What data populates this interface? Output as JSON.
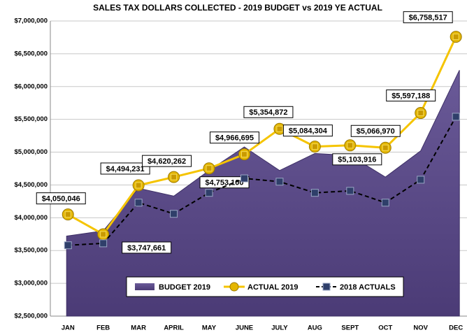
{
  "chart_data": {
    "type": "line",
    "title": "SALES TAX DOLLARS COLLECTED  - 2019 BUDGET  vs 2019 YE ACTUAL",
    "categories": [
      "JAN",
      "FEB",
      "MAR",
      "APRIL",
      "MAY",
      "JUNE",
      "JULY",
      "AUG",
      "SEPT",
      "OCT",
      "NOV",
      "DEC"
    ],
    "series": [
      {
        "name": "BUDGET 2019",
        "color": "#5b4a86",
        "style": "area",
        "values": [
          3720000,
          3800000,
          4450000,
          4330000,
          4720000,
          5080000,
          4720000,
          4980000,
          4950000,
          4620000,
          5020000,
          6250000
        ]
      },
      {
        "name": "ACTUAL 2019",
        "color": "#f5c400",
        "style": "line",
        "values": [
          4050046,
          3747661,
          4494231,
          4620262,
          4753100,
          4966695,
          5354872,
          5084304,
          5103916,
          5066970,
          5597188,
          6758517
        ],
        "value_labels": [
          "$4,050,046",
          "$3,747,661",
          "$4,494,231",
          "$4,620,262",
          "$4,753,100",
          "$4,966,695",
          "$5,354,872",
          "$5,084,304",
          "$5,103,916",
          "$5,066,970",
          "$5,597,188",
          "$6,758,517"
        ]
      },
      {
        "name": "2018 ACTUALS",
        "color": "#000000",
        "style": "dashed",
        "values": [
          3580000,
          3610000,
          4230000,
          4060000,
          4380000,
          4600000,
          4550000,
          4380000,
          4410000,
          4230000,
          4580000,
          5540000
        ]
      }
    ],
    "ylim": [
      2500000,
      7000000
    ],
    "yticks": [
      {
        "value": 2500000,
        "label": "$2,500,000"
      },
      {
        "value": 3000000,
        "label": "$3,000,000"
      },
      {
        "value": 3500000,
        "label": "$3,500,000"
      },
      {
        "value": 4000000,
        "label": "$4,000,000"
      },
      {
        "value": 4500000,
        "label": "$4,500,000"
      },
      {
        "value": 5000000,
        "label": "$5,000,000"
      },
      {
        "value": 5500000,
        "label": "$5,500,000"
      },
      {
        "value": 6000000,
        "label": "$6,000,000"
      },
      {
        "value": 6500000,
        "label": "$6,500,000"
      },
      {
        "value": 7000000,
        "label": "$7,000,000"
      }
    ],
    "grid": true,
    "legend": "bottom"
  }
}
